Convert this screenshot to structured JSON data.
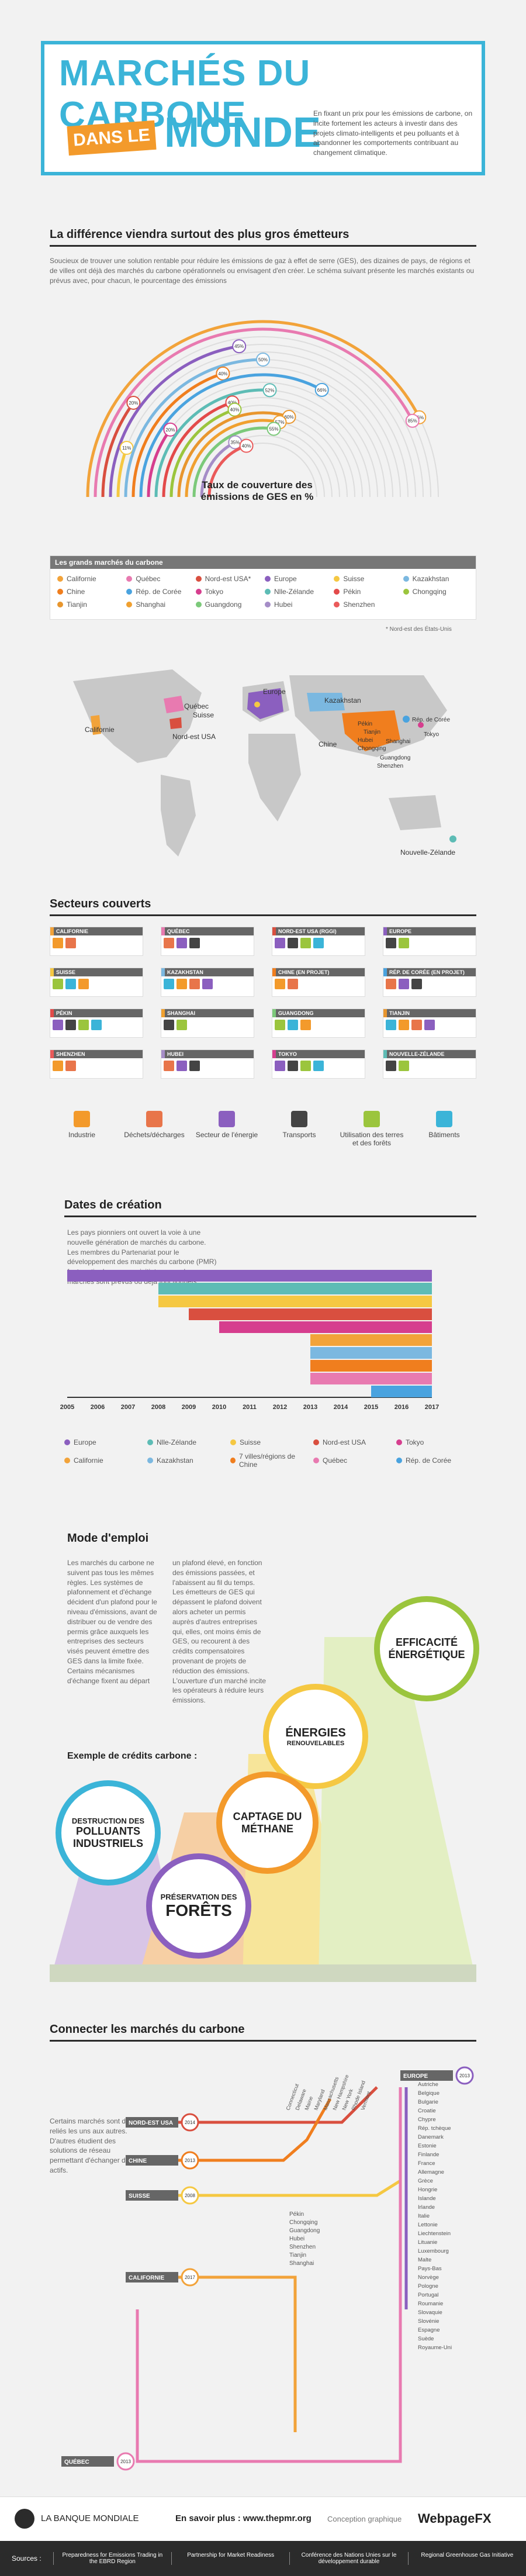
{
  "header": {
    "title_line1": "MARCHÉS DU CARBONE",
    "title_dans": "DANS LE",
    "title_line2": "MONDE",
    "intro": "En fixant un prix pour les émissions de carbone, on incite fortement les acteurs à investir dans des projets climato-intelligents et peu polluants et à abandonner les comportements contribuant au changement climatique."
  },
  "section1": {
    "title": "La différence viendra surtout des plus gros émetteurs",
    "text": "Soucieux de trouver une solution rentable pour réduire les émissions de gaz à effet de serre (GES), des dizaines de pays, de régions et de villes ont déjà des marchés du carbone opérationnels ou envisagent d'en créer. Le schéma suivant présente les marchés existants ou prévus avec, pour chacun, le pourcentage des émissions",
    "chart_label": "Taux de couverture des émissions de GES en %"
  },
  "chart_data": {
    "type": "arc",
    "series": [
      {
        "name": "Californie",
        "value": 85,
        "label": "85%",
        "color": "#f2a33a"
      },
      {
        "name": "Québec",
        "value": 85,
        "label": "85%",
        "color": "#e87ab0"
      },
      {
        "name": "Nord-est USA",
        "value": 20,
        "label": "20%",
        "color": "#d94f3f"
      },
      {
        "name": "Europe",
        "value": 45,
        "label": "45%",
        "color": "#8b5fbf"
      },
      {
        "name": "Suisse",
        "value": 11,
        "label": "11%",
        "color": "#f5c842"
      },
      {
        "name": "Kazakhstan",
        "value": 50,
        "label": "50%",
        "color": "#7bb8e0"
      },
      {
        "name": "Chine",
        "value": 40,
        "label": "40%",
        "color": "#f07e1e"
      },
      {
        "name": "Rép. de Corée",
        "value": 66,
        "label": "66%",
        "color": "#4aa3df"
      },
      {
        "name": "Tokyo",
        "value": 20,
        "label": "20%",
        "color": "#d63e8e"
      },
      {
        "name": "Nlle-Zélande",
        "value": 52,
        "label": "52%",
        "color": "#5dbcb5"
      },
      {
        "name": "Pékin",
        "value": 40,
        "label": "40%",
        "color": "#e34a4a"
      },
      {
        "name": "Chongqing",
        "value": 40,
        "label": "40%",
        "color": "#9bc53d"
      },
      {
        "name": "Tianjin",
        "value": 60,
        "label": "60%",
        "color": "#e8962e"
      },
      {
        "name": "Shanghai",
        "value": 57,
        "label": "57%",
        "color": "#f0a030"
      },
      {
        "name": "Guangdong",
        "value": 55,
        "label": "55%",
        "color": "#7cc97a"
      },
      {
        "name": "Hubei",
        "value": 35,
        "label": "35%",
        "color": "#a58dc7"
      },
      {
        "name": "Shenzhen",
        "value": 40,
        "label": "40%",
        "color": "#ea5a5a"
      }
    ]
  },
  "markets_box": {
    "title": "Les grands marchés du carbone",
    "items": [
      {
        "label": "Californie",
        "color": "#f2a33a"
      },
      {
        "label": "Québec",
        "color": "#e87ab0"
      },
      {
        "label": "Nord-est USA*",
        "color": "#d94f3f"
      },
      {
        "label": "Europe",
        "color": "#8b5fbf"
      },
      {
        "label": "Suisse",
        "color": "#f5c842"
      },
      {
        "label": "Kazakhstan",
        "color": "#7bb8e0"
      },
      {
        "label": "Chine",
        "color": "#f07e1e"
      },
      {
        "label": "Rép. de Corée",
        "color": "#4aa3df"
      },
      {
        "label": "Tokyo",
        "color": "#d63e8e"
      },
      {
        "label": "Nlle-Zélande",
        "color": "#5dbcb5"
      },
      {
        "label": "Pékin",
        "color": "#e34a4a"
      },
      {
        "label": "Chongqing",
        "color": "#9bc53d"
      },
      {
        "label": "Tianjin",
        "color": "#e8962e"
      },
      {
        "label": "Shanghai",
        "color": "#f0a030"
      },
      {
        "label": "Guangdong",
        "color": "#7cc97a"
      },
      {
        "label": "Hubei",
        "color": "#a58dc7"
      },
      {
        "label": "Shenzhen",
        "color": "#ea5a5a"
      }
    ],
    "note": "* Nord-est des États-Unis"
  },
  "map_labels": {
    "europe": "Europe",
    "kazakhstan": "Kazakhstan",
    "quebec": "Québec",
    "suisse": "Suisse",
    "californie": "Californie",
    "nordest": "Nord-est USA",
    "chine": "Chine",
    "pekin": "Pékin",
    "tianjin": "Tianjin",
    "hubei": "Hubei",
    "chongqing": "Chongqing",
    "shanghai": "Shanghai",
    "guangdong": "Guangdong",
    "shenzhen": "Shenzhen",
    "coree": "Rép. de Corée",
    "tokyo": "Tokyo",
    "nz": "Nouvelle-Zélande"
  },
  "sectors": {
    "title": "Secteurs couverts",
    "cards": [
      {
        "name": "CALIFORNIE",
        "color": "#f2a33a"
      },
      {
        "name": "QUÉBEC",
        "color": "#e87ab0"
      },
      {
        "name": "NORD-EST USA (RGGI)",
        "color": "#d94f3f"
      },
      {
        "name": "EUROPE",
        "color": "#8b5fbf"
      },
      {
        "name": "SUISSE",
        "color": "#f5c842"
      },
      {
        "name": "KAZAKHSTAN",
        "color": "#7bb8e0"
      },
      {
        "name": "CHINE (EN PROJET)",
        "color": "#f07e1e"
      },
      {
        "name": "RÉP. DE CORÉE (EN PROJET)",
        "color": "#4aa3df"
      },
      {
        "name": "PÉKIN",
        "color": "#e34a4a"
      },
      {
        "name": "SHANGHAI",
        "color": "#f0a030"
      },
      {
        "name": "GUANGDONG",
        "color": "#7cc97a"
      },
      {
        "name": "TIANJIN",
        "color": "#e8962e"
      },
      {
        "name": "SHENZHEN",
        "color": "#ea5a5a"
      },
      {
        "name": "HUBEI",
        "color": "#a58dc7"
      },
      {
        "name": "TOKYO",
        "color": "#d63e8e"
      },
      {
        "name": "NOUVELLE-ZÉLANDE",
        "color": "#5dbcb5"
      }
    ],
    "legend": [
      "Industrie",
      "Déchets/décharges",
      "Secteur de l'énergie",
      "Transports",
      "Utilisation des terres et des forêts",
      "Bâtiments"
    ]
  },
  "dates": {
    "title": "Dates de création",
    "text": "Les pays pionniers ont ouvert la voie à une nouvelle génération de marchés du carbone. Les membres du Partenariat pour le développement des marchés du carbone (PMR) font partie de ces pays initiateurs ou de ces marchés sont prévus ou déjà fonctionnels.",
    "years": [
      "2005",
      "2006",
      "2007",
      "2008",
      "2009",
      "2010",
      "2011",
      "2012",
      "2013",
      "2014",
      "2015",
      "2016",
      "2017"
    ],
    "legend": [
      {
        "label": "Europe",
        "color": "#8b5fbf"
      },
      {
        "label": "Nlle-Zélande",
        "color": "#5dbcb5"
      },
      {
        "label": "Suisse",
        "color": "#f5c842"
      },
      {
        "label": "Nord-est USA",
        "color": "#d94f3f"
      },
      {
        "label": "Tokyo",
        "color": "#d63e8e"
      },
      {
        "label": "Californie",
        "color": "#f2a33a"
      },
      {
        "label": "Kazakhstan",
        "color": "#7bb8e0"
      },
      {
        "label": "7 villes/régions de Chine",
        "color": "#f07e1e"
      },
      {
        "label": "Québec",
        "color": "#e87ab0"
      },
      {
        "label": "Rép. de Corée",
        "color": "#4aa3df"
      }
    ]
  },
  "mode": {
    "title": "Mode d'emploi",
    "col1": "Les marchés du carbone ne suivent pas tous les mêmes règles. Les systèmes de plafonnement et d'échange décident d'un plafond pour le niveau d'émissions, avant de distribuer ou de vendre des permis grâce auxquels les entreprises des secteurs visés peuvent émettre des GES dans la limite fixée. Certains mécanismes d'échange fixent au départ",
    "col2": "un plafond élevé, en fonction des émissions passées, et l'abaissent au fil du temps. Les émetteurs de GES qui dépassent le plafond doivent alors acheter un permis auprès d'autres entreprises qui, elles, ont moins émis de GES, ou recourent à des crédits compensatoires provenant de projets de réduction des émissions. L'ouverture d'un marché incite les opérateurs à réduire leurs émissions.",
    "efficacite": "EFFICACITÉ ÉNERGÉTIQUE",
    "energies": "ÉNERGIES",
    "renouvelables": "RENOUVELABLES",
    "exemple": "Exemple de crédits carbone :",
    "captage1": "CAPTAGE DU",
    "captage2": "MÉTHANE",
    "destruction1": "DESTRUCTION DES",
    "destruction2": "POLLUANTS INDUSTRIELS",
    "foret1": "PRÉSERVATION DES",
    "foret2": "FORÊTS"
  },
  "connect": {
    "title": "Connecter les marchés du carbone",
    "text": "Certains marchés sont déjà reliés les uns aux autres. D'autres étudient des solutions de réseau permettant d'échanger des actifs.",
    "stations": [
      "NORD-EST USA",
      "CHINE",
      "SUISSE",
      "CALIFORNIE",
      "QUÉBEC",
      "EUROPE"
    ],
    "years": [
      "2014",
      "2013",
      "2008",
      "2017",
      "2013",
      "2013"
    ],
    "chine_list": [
      "Pékin",
      "Chongqing",
      "Guangdong",
      "Hubei",
      "Shenzhen",
      "Tianjin",
      "Shanghai"
    ],
    "nordest_list": [
      "Connecticut",
      "Delaware",
      "Maine",
      "Maryland",
      "Massachusetts",
      "New Hampshire",
      "New York",
      "Rhode Island",
      "Vermont"
    ],
    "europe_list": [
      "Autriche",
      "Belgique",
      "Bulgarie",
      "Croatie",
      "Chypre",
      "Rép. tchèque",
      "Danemark",
      "Estonie",
      "Finlande",
      "France",
      "Allemagne",
      "Grèce",
      "Hongrie",
      "Islande",
      "Irlande",
      "Italie",
      "Lettonie",
      "Liechtenstein",
      "Lituanie",
      "Luxembourg",
      "Malte",
      "Pays-Bas",
      "Norvège",
      "Pologne",
      "Portugal",
      "Roumanie",
      "Slovaquie",
      "Slovénie",
      "Espagne",
      "Suède",
      "Royaume-Uni"
    ]
  },
  "footer": {
    "org": "LA BANQUE MONDIALE",
    "more": "En savoir plus : www.thepmr.org",
    "design": "Conception graphique",
    "brand": "WebpageFX",
    "sources_label": "Sources :",
    "sources": [
      "Preparedness for Emissions Trading in the EBRD Region",
      "Partnership for Market Readiness",
      "Conférence des Nations Unies sur le développement durable",
      "Regional Greenhouse Gas Initiative"
    ]
  }
}
